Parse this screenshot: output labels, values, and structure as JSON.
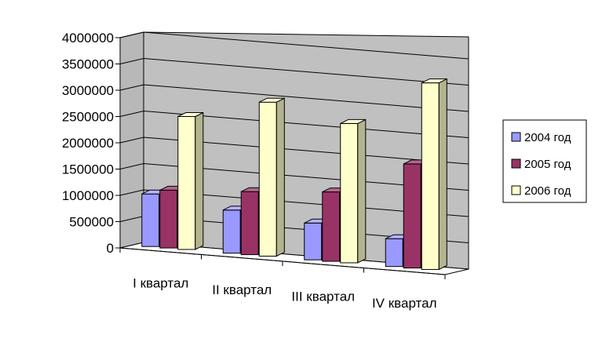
{
  "chart_data": {
    "type": "bar",
    "style": "3d-clustered-column",
    "categories": [
      "I квартал",
      "II квартал",
      "III квартал",
      "IV квартал"
    ],
    "series": [
      {
        "name": "2004 год",
        "values": [
          1000000,
          820000,
          700000,
          530000
        ],
        "color": "#9999ff"
      },
      {
        "name": "2005 год",
        "values": [
          1100000,
          1200000,
          1320000,
          1980000
        ],
        "color": "#993366"
      },
      {
        "name": "2006 год",
        "values": [
          2530000,
          2930000,
          2650000,
          3550000
        ],
        "color": "#ffffcc"
      }
    ],
    "y_ticks": [
      "0",
      "500000",
      "1000000",
      "1500000",
      "2000000",
      "2500000",
      "3000000",
      "3500000",
      "4000000"
    ],
    "ylim": [
      0,
      4000000
    ],
    "grid": true,
    "legend": "right",
    "wall_color": "#c0c0c0",
    "floor_color": "#ffffff"
  }
}
